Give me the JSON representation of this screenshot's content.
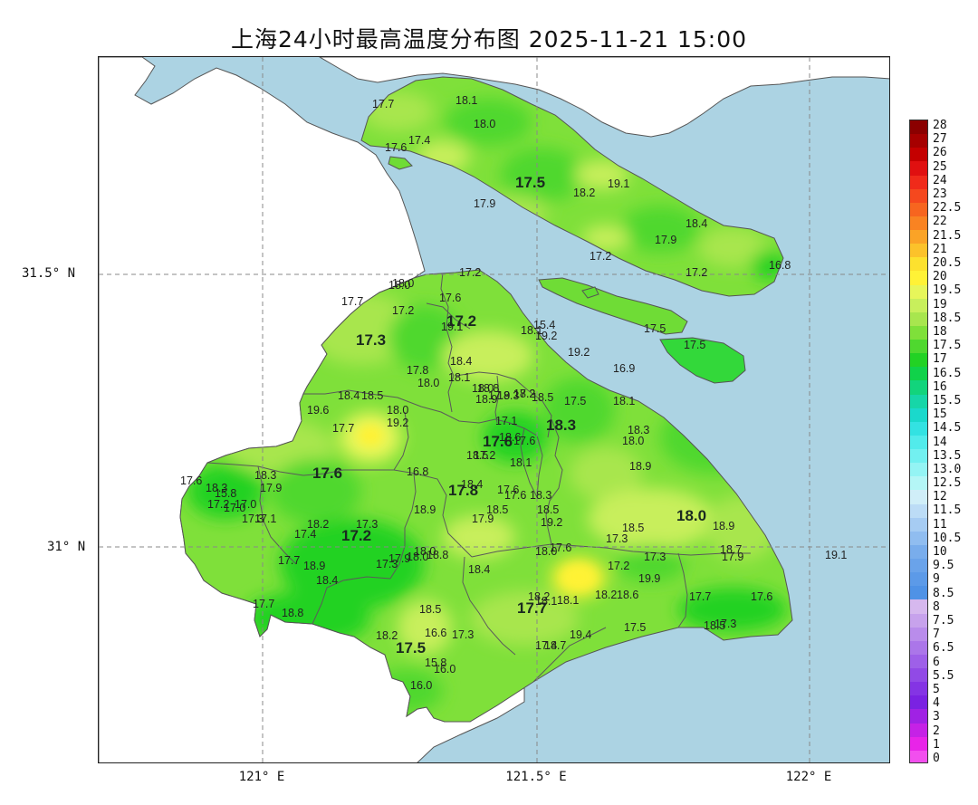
{
  "title": "上海24小时最高温度分布图 2025-11-21 15:00",
  "colors": {
    "sea": "#acd3e3",
    "land_outside": "#ffffff",
    "land_fill_base": "#7fe03a",
    "boundary": "#555555"
  },
  "axes": {
    "lat_labels": [
      "31.5° N",
      "31° N"
    ],
    "lon_labels": [
      "121° E",
      "121.5° E",
      "122° E"
    ]
  },
  "colorbar": {
    "labels": [
      "28",
      "27",
      "26",
      "25",
      "24",
      "23",
      "22.5",
      "22",
      "21.5",
      "21",
      "20.5",
      "20",
      "19.5",
      "19",
      "18.5",
      "18",
      "17.5",
      "17",
      "16.5",
      "16",
      "15.5",
      "15",
      "14.5",
      "14",
      "13.5",
      "13.0",
      "12.5",
      "12",
      "11.5",
      "11",
      "10.5",
      "10",
      "9.5",
      "9",
      "8.5",
      "8",
      "7.5",
      "7",
      "6.5",
      "6",
      "5.5",
      "5",
      "4",
      "3",
      "2",
      "1",
      "0"
    ],
    "colors": [
      "#8b0000",
      "#a60000",
      "#c40000",
      "#e01010",
      "#f02a1a",
      "#f5481e",
      "#f7651f",
      "#f98322",
      "#fba326",
      "#fcc22a",
      "#fde12e",
      "#fff236",
      "#e7f65a",
      "#c8ef5c",
      "#a8e64e",
      "#7fe03a",
      "#4fd82f",
      "#22d224",
      "#10d24a",
      "#12d47c",
      "#16d6a8",
      "#1ad9cc",
      "#33e2e2",
      "#52ebeb",
      "#72f0f0",
      "#94f4f4",
      "#b4f6f6",
      "#d0eef8",
      "#bcdcf6",
      "#a6ccf3",
      "#90bdf0",
      "#79adec",
      "#6aa3ea",
      "#5c9ae8",
      "#4f92e6",
      "#d6b8ee",
      "#c7a2ec",
      "#b98ceb",
      "#ab76e9",
      "#9e60e8",
      "#914ae6",
      "#8434e4",
      "#7a22e2",
      "#a022e4",
      "#c522e6",
      "#e824e8",
      "#f24fee"
    ]
  },
  "district_labels": [
    "17.5",
    "17.2",
    "17.3",
    "18.3",
    "17.6",
    "17.6",
    "17.8",
    "17.2",
    "18.0",
    "17.7",
    "17.5"
  ],
  "stations": [
    "17.7",
    "18.1",
    "18.0",
    "17.6",
    "17.4",
    "19.1",
    "18.2",
    "17.9",
    "18.4",
    "17.9",
    "17.2",
    "17.2",
    "16.8",
    "17.2",
    "18.0",
    "18.0",
    "17.6",
    "17.7",
    "17.2",
    "19.1",
    "15.4",
    "19.2",
    "18.1",
    "19.2",
    "17.5",
    "17.5",
    "16.9",
    "18.4",
    "18.1",
    "17.8",
    "18.0",
    "18.0",
    "18.9",
    "18.8",
    "17.9",
    "18.3",
    "18.2",
    "18.5",
    "17.2",
    "18.4",
    "18.5",
    "19.6",
    "18.0",
    "19.2",
    "17.7",
    "17.5",
    "18.1",
    "17.1",
    "18.3",
    "18.5",
    "17.2",
    "18.6",
    "17.6",
    "18.0",
    "18.9",
    "16.8",
    "18.1",
    "18.4",
    "17.6",
    "18.3",
    "18.3",
    "17.6",
    "15.8",
    "17.0",
    "17.0",
    "17.9",
    "17.2",
    "17.3",
    "17.1",
    "17.6",
    "18.9",
    "18.3",
    "17.9",
    "18.5",
    "18.5",
    "19.2",
    "18.5",
    "18.9",
    "17.3",
    "17.4",
    "17.3",
    "18.2",
    "18.7",
    "17.9",
    "19.1",
    "18.0",
    "18.8",
    "18.0",
    "17.9",
    "18.0",
    "17.6",
    "17.3",
    "17.7",
    "18.9",
    "17.3",
    "18.4",
    "17.2",
    "19.9",
    "18.4",
    "18.2",
    "18.1",
    "18.1",
    "18.2",
    "18.6",
    "17.7",
    "17.6",
    "17.7",
    "18.8",
    "18.5",
    "18.2",
    "16.6",
    "17.3",
    "17.3",
    "17.5",
    "18.5",
    "18.7",
    "17.4",
    "19.4",
    "15.8",
    "16.0",
    "16.0"
  ]
}
